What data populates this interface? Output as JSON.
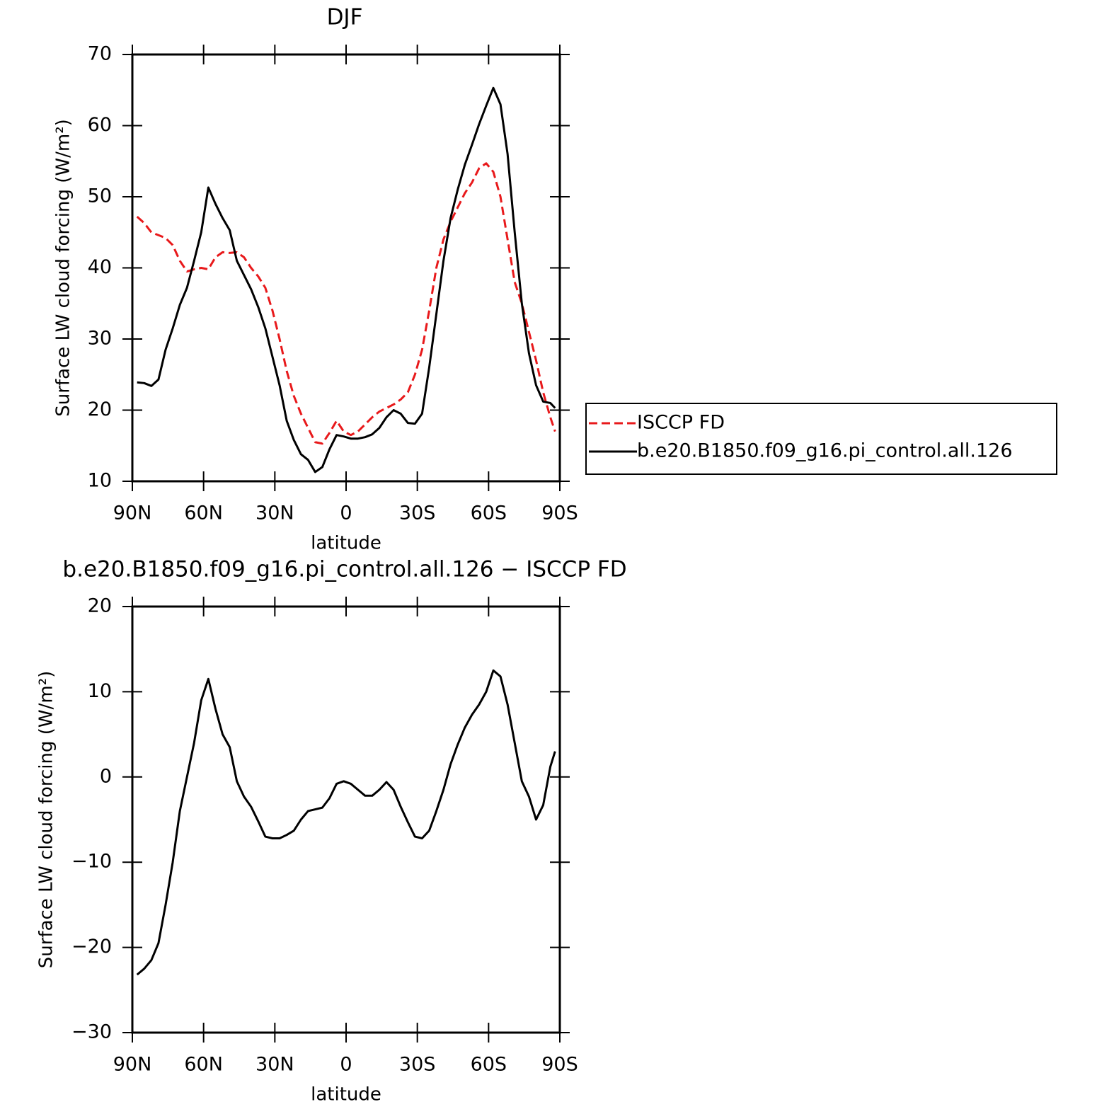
{
  "chart_data": [
    {
      "type": "line",
      "title": "DJF",
      "xlabel": "latitude",
      "ylabel": "Surface LW cloud forcing (W/m²)",
      "x": [
        88,
        85,
        82,
        79,
        76,
        73,
        70,
        67,
        64,
        61,
        58,
        55,
        52,
        49,
        46,
        43,
        40,
        37,
        34,
        31,
        28,
        25,
        22,
        19,
        16,
        13,
        10,
        7,
        4,
        1,
        -2,
        -5,
        -8,
        -11,
        -14,
        -17,
        -20,
        -23,
        -26,
        -29,
        -32,
        -35,
        -38,
        -41,
        -44,
        -47,
        -50,
        -53,
        -56,
        -59,
        -62,
        -65,
        -68,
        -71,
        -74,
        -77,
        -80,
        -83,
        -86,
        -88
      ],
      "xlim": [
        90,
        -90
      ],
      "xticks": [
        {
          "value": 90,
          "label": "90N"
        },
        {
          "value": 60,
          "label": "60N"
        },
        {
          "value": 30,
          "label": "30N"
        },
        0,
        {
          "value": -30,
          "label": "30S"
        },
        {
          "value": -60,
          "label": "60S"
        },
        {
          "value": -90,
          "label": "90S"
        }
      ],
      "ylim": [
        10,
        70
      ],
      "yticks": [
        10,
        20,
        30,
        40,
        50,
        60,
        70
      ],
      "legend": "right",
      "series": [
        {
          "name": "ISCCP FD",
          "color": "#e8191b",
          "linestyle": "dashed",
          "values": [
            47.2,
            46.3,
            45,
            44.6,
            44.2,
            43.2,
            41,
            39.5,
            39.8,
            40,
            39.8,
            41.5,
            42.2,
            42.1,
            42.2,
            41.5,
            40,
            38.8,
            37.2,
            34,
            30,
            25.5,
            22,
            19.5,
            17.5,
            15.5,
            15.3,
            16.8,
            18.5,
            17,
            16.5,
            17,
            18,
            19,
            19.8,
            20.3,
            20.8,
            21.5,
            22.5,
            25,
            28.5,
            34,
            40,
            44,
            46.5,
            48.5,
            50.5,
            52,
            54,
            54.7,
            53.5,
            50,
            44,
            38,
            35,
            31,
            27,
            22.5,
            19,
            17
          ]
        },
        {
          "name": "b.e20.B1850.f09_g16.pi_control.all.126",
          "color": "#000000",
          "linestyle": "solid",
          "values": [
            23.9,
            23.8,
            23.4,
            24.3,
            28.5,
            31.5,
            34.8,
            37.2,
            41,
            45,
            51.3,
            49,
            47,
            45.3,
            41,
            39,
            37,
            34.5,
            31.5,
            27.5,
            23.5,
            18.5,
            15.8,
            13.8,
            13,
            11.3,
            12,
            14.5,
            16.5,
            16.3,
            16,
            16,
            16.2,
            16.6,
            17.5,
            19,
            20,
            19.5,
            18.2,
            18.1,
            19.5,
            26,
            33.5,
            41,
            47,
            51,
            54.5,
            57.3,
            60.2,
            62.8,
            65.3,
            63,
            56,
            45,
            35,
            28,
            23.5,
            21.2,
            21,
            20.3
          ]
        }
      ]
    },
    {
      "type": "line",
      "title": "b.e20.B1850.f09_g16.pi_control.all.126 − ISCCP FD",
      "xlabel": "latitude",
      "ylabel": "Surface LW cloud forcing (W/m²)",
      "x": [
        88,
        85,
        82,
        79,
        76,
        73,
        70,
        67,
        64,
        61,
        58,
        55,
        52,
        49,
        46,
        43,
        40,
        37,
        34,
        31,
        28,
        25,
        22,
        19,
        16,
        13,
        10,
        7,
        4,
        1,
        -2,
        -5,
        -8,
        -11,
        -14,
        -17,
        -20,
        -23,
        -26,
        -29,
        -32,
        -35,
        -38,
        -41,
        -44,
        -47,
        -50,
        -53,
        -56,
        -59,
        -62,
        -65,
        -68,
        -71,
        -74,
        -77,
        -80,
        -83,
        -86,
        -88
      ],
      "xlim": [
        90,
        -90
      ],
      "xticks": [
        {
          "value": 90,
          "label": "90N"
        },
        {
          "value": 60,
          "label": "60N"
        },
        {
          "value": 30,
          "label": "30N"
        },
        0,
        {
          "value": -30,
          "label": "30S"
        },
        {
          "value": -60,
          "label": "60S"
        },
        {
          "value": -90,
          "label": "90S"
        }
      ],
      "ylim": [
        -30,
        20
      ],
      "yticks": [
        {
          "value": -30,
          "label": "−30"
        },
        {
          "value": -20,
          "label": "−20"
        },
        {
          "value": -10,
          "label": "−10"
        },
        0,
        10,
        20
      ],
      "series": [
        {
          "color": "#000000",
          "linestyle": "solid",
          "values": [
            -23.2,
            -22.5,
            -21.5,
            -19.5,
            -15,
            -10,
            -4,
            0,
            4,
            9,
            11.5,
            8,
            5,
            3.5,
            -0.5,
            -2.3,
            -3.5,
            -5.2,
            -7,
            -7.2,
            -7.2,
            -6.8,
            -6.3,
            -5,
            -4,
            -3.8,
            -3.6,
            -2.5,
            -0.8,
            -0.5,
            -0.8,
            -1.5,
            -2.2,
            -2.2,
            -1.5,
            -0.6,
            -1.5,
            -3.5,
            -5.3,
            -7,
            -7.2,
            -6.3,
            -4,
            -1.5,
            1.5,
            3.8,
            5.8,
            7.3,
            8.5,
            10,
            12.5,
            11.8,
            8.5,
            4,
            -0.5,
            -2.3,
            -5,
            -3.3,
            1.2,
            3
          ]
        }
      ]
    }
  ]
}
